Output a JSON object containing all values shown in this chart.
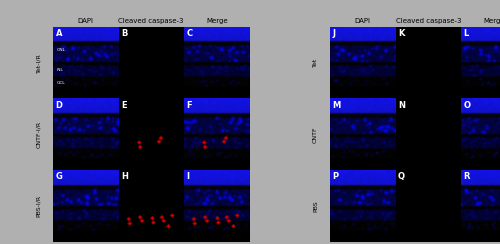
{
  "left_row_labels": [
    "Tet-I/R",
    "CNTF-I/R",
    "PBS-I/R"
  ],
  "right_row_labels": [
    "Tet",
    "CNTF",
    "PBS"
  ],
  "col_labels_left": [
    "DAPI",
    "Cleaved caspase-3",
    "Merge"
  ],
  "col_labels_right": [
    "DAPI",
    "Cleaved caspase-3",
    "Merge"
  ],
  "panel_labels_left": [
    [
      "A",
      "B",
      "C"
    ],
    [
      "D",
      "E",
      "F"
    ],
    [
      "G",
      "H",
      "I"
    ]
  ],
  "panel_labels_right": [
    [
      "J",
      "K",
      "L"
    ],
    [
      "M",
      "N",
      "O"
    ],
    [
      "P",
      "Q",
      "R"
    ]
  ],
  "layer_labels_A": [
    "ONL",
    "INL",
    "GCL"
  ],
  "fig_bg": "#b0b0b0",
  "label_font_size": 5.0,
  "panel_label_font_size": 6.0,
  "row_label_font_size": 4.5
}
